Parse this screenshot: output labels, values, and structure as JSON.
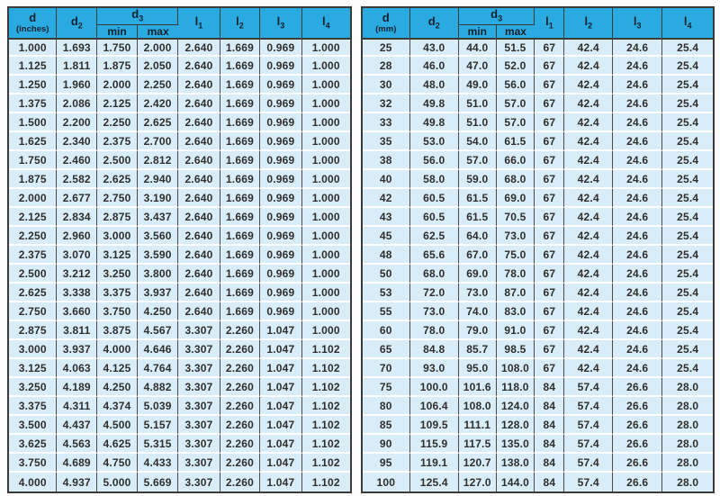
{
  "colors": {
    "header_bg": "#29abe2",
    "row_bg": "#d9edf8",
    "border_dark": "#3a3a3a",
    "row_separator": "#ffffff",
    "text": "#2e2e2e"
  },
  "tables": [
    {
      "id": "inches",
      "header": {
        "d_base": "d",
        "d_unit": "(inches)",
        "d2_base": "d",
        "d2_sub": "2",
        "d3_base": "d",
        "d3_sub": "3",
        "min": "min",
        "max": "max",
        "l1_base": "l",
        "l1_sub": "1",
        "l2_base": "l",
        "l2_sub": "2",
        "l3_base": "l",
        "l3_sub": "3",
        "l4_base": "l",
        "l4_sub": "4"
      },
      "rows": [
        [
          "1.000",
          "1.693",
          "1.750",
          "2.000",
          "2.640",
          "1.669",
          "0.969",
          "1.000"
        ],
        [
          "1.125",
          "1.811",
          "1.875",
          "2.050",
          "2.640",
          "1.669",
          "0.969",
          "1.000"
        ],
        [
          "1.250",
          "1.960",
          "2.000",
          "2.250",
          "2.640",
          "1.669",
          "0.969",
          "1.000"
        ],
        [
          "1.375",
          "2.086",
          "2.125",
          "2.420",
          "2.640",
          "1.669",
          "0.969",
          "1.000"
        ],
        [
          "1.500",
          "2.200",
          "2.250",
          "2.625",
          "2.640",
          "1.669",
          "0.969",
          "1.000"
        ],
        [
          "1.625",
          "2.340",
          "2.375",
          "2.700",
          "2.640",
          "1.669",
          "0.969",
          "1.000"
        ],
        [
          "1.750",
          "2.460",
          "2.500",
          "2.812",
          "2.640",
          "1.669",
          "0.969",
          "1.000"
        ],
        [
          "1.875",
          "2.582",
          "2.625",
          "2.940",
          "2.640",
          "1.669",
          "0.969",
          "1.000"
        ],
        [
          "2.000",
          "2.677",
          "2.750",
          "3.190",
          "2.640",
          "1.669",
          "0.969",
          "1.000"
        ],
        [
          "2.125",
          "2.834",
          "2.875",
          "3.437",
          "2.640",
          "1.669",
          "0.969",
          "1.000"
        ],
        [
          "2.250",
          "2.960",
          "3.000",
          "3.560",
          "2.640",
          "1.669",
          "0.969",
          "1.000"
        ],
        [
          "2.375",
          "3.070",
          "3.125",
          "3.590",
          "2.640",
          "1.669",
          "0.969",
          "1.000"
        ],
        [
          "2.500",
          "3.212",
          "3.250",
          "3.800",
          "2.640",
          "1.669",
          "0.969",
          "1.000"
        ],
        [
          "2.625",
          "3.338",
          "3.375",
          "3.937",
          "2.640",
          "1.669",
          "0.969",
          "1.000"
        ],
        [
          "2.750",
          "3.660",
          "3.750",
          "4.250",
          "2.640",
          "1.669",
          "0.969",
          "1.000"
        ],
        [
          "2.875",
          "3.811",
          "3.875",
          "4.567",
          "3.307",
          "2.260",
          "1.047",
          "1.000"
        ],
        [
          "3.000",
          "3.937",
          "4.000",
          "4.646",
          "3.307",
          "2.260",
          "1.047",
          "1.102"
        ],
        [
          "3.125",
          "4.063",
          "4.125",
          "4.764",
          "3.307",
          "2.260",
          "1.047",
          "1.102"
        ],
        [
          "3.250",
          "4.189",
          "4.250",
          "4.882",
          "3.307",
          "2.260",
          "1.047",
          "1.102"
        ],
        [
          "3.375",
          "4.311",
          "4.374",
          "5.039",
          "3.307",
          "2.260",
          "1.047",
          "1.102"
        ],
        [
          "3.500",
          "4.437",
          "4.500",
          "5.157",
          "3.307",
          "2.260",
          "1.047",
          "1.102"
        ],
        [
          "3.625",
          "4.563",
          "4.625",
          "5.315",
          "3.307",
          "2.260",
          "1.047",
          "1.102"
        ],
        [
          "3.750",
          "4.689",
          "4.750",
          "4.433",
          "3.307",
          "2.260",
          "1.047",
          "1.102"
        ],
        [
          "4.000",
          "4.937",
          "5.000",
          "5.669",
          "3.307",
          "2.260",
          "1.047",
          "1.102"
        ]
      ]
    },
    {
      "id": "mm",
      "header": {
        "d_base": "d",
        "d_unit": "(mm)",
        "d2_base": "d",
        "d2_sub": "2",
        "d3_base": "d",
        "d3_sub": "3",
        "min": "min",
        "max": "max",
        "l1_base": "l",
        "l1_sub": "1",
        "l2_base": "l",
        "l2_sub": "2",
        "l3_base": "l",
        "l3_sub": "3",
        "l4_base": "l",
        "l4_sub": "4"
      },
      "rows": [
        [
          "25",
          "43.0",
          "44.0",
          "51.5",
          "67",
          "42.4",
          "24.6",
          "25.4"
        ],
        [
          "28",
          "46.0",
          "47.0",
          "52.0",
          "67",
          "42.4",
          "24.6",
          "25.4"
        ],
        [
          "30",
          "48.0",
          "49.0",
          "56.0",
          "67",
          "42.4",
          "24.6",
          "25.4"
        ],
        [
          "32",
          "49.8",
          "51.0",
          "57.0",
          "67",
          "42.4",
          "24.6",
          "25.4"
        ],
        [
          "33",
          "49.8",
          "51.0",
          "57.0",
          "67",
          "42.4",
          "24.6",
          "25.4"
        ],
        [
          "35",
          "53.0",
          "54.0",
          "61.5",
          "67",
          "42.4",
          "24.6",
          "25.4"
        ],
        [
          "38",
          "56.0",
          "57.0",
          "66.0",
          "67",
          "42.4",
          "24.6",
          "25.4"
        ],
        [
          "40",
          "58.0",
          "59.0",
          "68.0",
          "67",
          "42.4",
          "24.6",
          "25.4"
        ],
        [
          "42",
          "60.5",
          "61.5",
          "69.0",
          "67",
          "42.4",
          "24.6",
          "25.4"
        ],
        [
          "43",
          "60.5",
          "61.5",
          "70.5",
          "67",
          "42.4",
          "24.6",
          "25.4"
        ],
        [
          "45",
          "62.5",
          "64.0",
          "73.0",
          "67",
          "42.4",
          "24.6",
          "25.4"
        ],
        [
          "48",
          "65.6",
          "67.0",
          "75.0",
          "67",
          "42.4",
          "24.6",
          "25.4"
        ],
        [
          "50",
          "68.0",
          "69.0",
          "78.0",
          "67",
          "42.4",
          "24.6",
          "25.4"
        ],
        [
          "53",
          "72.0",
          "73.0",
          "87.0",
          "67",
          "42.4",
          "24.6",
          "25.4"
        ],
        [
          "55",
          "73.0",
          "74.0",
          "83.0",
          "67",
          "42.4",
          "24.6",
          "25.4"
        ],
        [
          "60",
          "78.0",
          "79.0",
          "91.0",
          "67",
          "42.4",
          "24.6",
          "25.4"
        ],
        [
          "65",
          "84.8",
          "85.7",
          "98.5",
          "67",
          "42.4",
          "24.6",
          "25.4"
        ],
        [
          "70",
          "93.0",
          "95.0",
          "108.0",
          "67",
          "42.4",
          "24.6",
          "25.4"
        ],
        [
          "75",
          "100.0",
          "101.6",
          "118.0",
          "84",
          "57.4",
          "26.6",
          "28.0"
        ],
        [
          "80",
          "106.4",
          "108.0",
          "124.0",
          "84",
          "57.4",
          "26.6",
          "28.0"
        ],
        [
          "85",
          "109.5",
          "111.1",
          "128.0",
          "84",
          "57.4",
          "26.6",
          "28.0"
        ],
        [
          "90",
          "115.9",
          "117.5",
          "135.0",
          "84",
          "57.4",
          "26.6",
          "28.0"
        ],
        [
          "95",
          "119.1",
          "120.7",
          "138.0",
          "84",
          "57.4",
          "26.6",
          "28.0"
        ],
        [
          "100",
          "125.4",
          "127.0",
          "144.0",
          "84",
          "57.4",
          "26.6",
          "28.0"
        ]
      ]
    }
  ]
}
